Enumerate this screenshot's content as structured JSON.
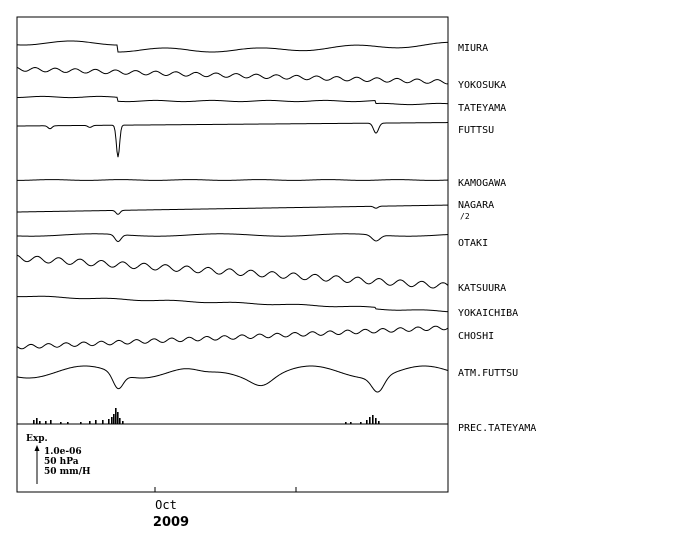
{
  "chart_data": {
    "type": "line",
    "title": "",
    "xlabel": "",
    "ylabel": "",
    "x_tick_labels": [
      "Oct"
    ],
    "year_label": "2009",
    "stations": [
      {
        "name": "MIURA"
      },
      {
        "name": "YOKOSUKA"
      },
      {
        "name": "TATEYAMA"
      },
      {
        "name": "FUTTSU"
      },
      {
        "name": "KAMOGAWA"
      },
      {
        "name": "NAGARA",
        "note": "/2"
      },
      {
        "name": "OTAKI"
      },
      {
        "name": "KATSUURA"
      },
      {
        "name": "YOKAICHIBA"
      },
      {
        "name": "CHOSHI"
      },
      {
        "name": "ATM.FUTTSU"
      },
      {
        "name": "PREC.TATEYAMA"
      }
    ],
    "scale_legend": {
      "title": "Exp.",
      "lines": [
        "1.0e-06",
        "50 hPa",
        "50 mm/H"
      ]
    }
  }
}
